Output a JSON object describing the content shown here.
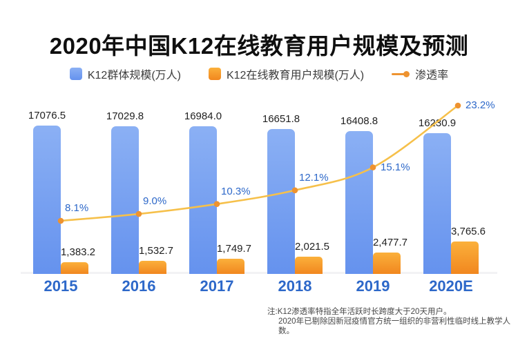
{
  "title": "2020年中国K12在线教育用户规模及预测",
  "legend": [
    {
      "label": "K12群体规模(万人)"
    },
    {
      "label": "K12在线教育用户规模(万人)"
    },
    {
      "label": "渗透率"
    }
  ],
  "colors": {
    "bar_blue_top": "#8bb0f4",
    "bar_blue_bottom": "#6592ee",
    "bar_orange_top": "#fbb03b",
    "bar_orange_bottom": "#f1871f",
    "line": "#f6c04a",
    "dot": "#ee9330",
    "label_blue": "#2d68c9"
  },
  "chart_data": {
    "type": "bar+line",
    "title": "2020年中国K12在线教育用户规模及预测",
    "categories": [
      "2015",
      "2016",
      "2017",
      "2018",
      "2019",
      "2020E"
    ],
    "series": [
      {
        "name": "K12群体规模(万人)",
        "type": "bar",
        "values": [
          17076.5,
          17029.8,
          16984.0,
          16651.8,
          16408.8,
          16230.9
        ],
        "labels": [
          "17076.5",
          "17029.8",
          "16984.0",
          "16651.8",
          "16408.8",
          "16230.9"
        ]
      },
      {
        "name": "K12在线教育用户规模(万人)",
        "type": "bar",
        "values": [
          1383.2,
          1532.7,
          1749.7,
          2021.5,
          2477.7,
          3765.6
        ],
        "labels": [
          "1,383.2",
          "1,532.7",
          "1,749.7",
          "2,021.5",
          "2,477.7",
          "3,765.6"
        ]
      },
      {
        "name": "渗透率",
        "type": "line",
        "unit": "%",
        "values": [
          8.1,
          9.0,
          10.3,
          12.1,
          15.1,
          23.2
        ],
        "labels": [
          "8.1%",
          "9.0%",
          "10.3%",
          "12.1%",
          "15.1%",
          "23.2%"
        ]
      }
    ],
    "legend_position": "top",
    "grid": false
  },
  "footnote": {
    "line1": "注:K12渗透率特指全年活跃时长跨度大于20天用户。",
    "line2": "2020年已剔除因新冠疫情官方统一组织的非营利性临时线上教学人数。"
  }
}
